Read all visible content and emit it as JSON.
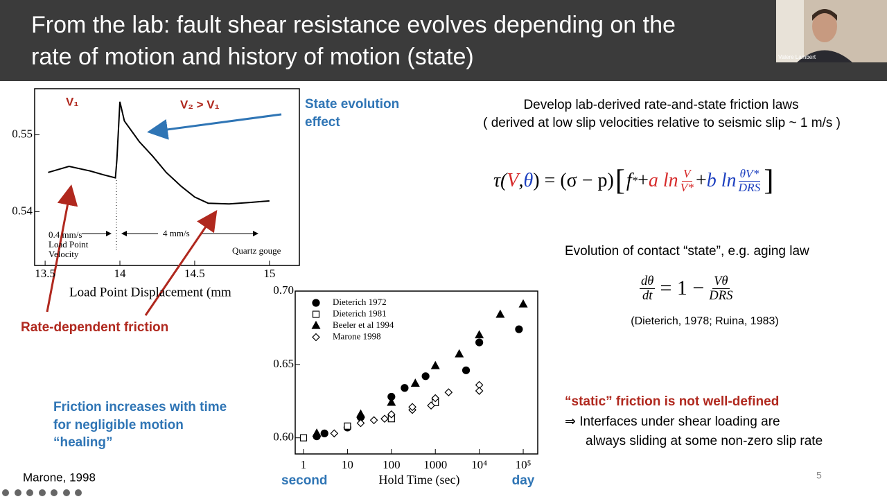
{
  "header": {
    "title_lines": [
      "From the lab: fault shear resistance evolves depending on the",
      "rate of motion and history of motion (state)"
    ]
  },
  "webcam": {
    "name": "Valere Lambert"
  },
  "left_plot": {
    "type": "line",
    "x": [
      13.52,
      13.66,
      13.8,
      13.89,
      13.97,
      13.98,
      14.0,
      14.03,
      14.13,
      14.22,
      14.31,
      14.41,
      14.5,
      14.59,
      14.73,
      14.87,
      15.0
    ],
    "values": [
      0.5451,
      0.5459,
      0.5453,
      0.5448,
      0.5444,
      0.5468,
      0.5543,
      0.5518,
      0.5491,
      0.5472,
      0.5451,
      0.5433,
      0.5419,
      0.5411,
      0.541,
      0.5412,
      0.5414
    ],
    "color": "#000000",
    "xlim": [
      13.43,
      15.2
    ],
    "ylim": [
      0.533,
      0.556
    ],
    "xticks": [
      13.5,
      14,
      14.5,
      15
    ],
    "yticks": [
      0.55,
      0.54
    ],
    "xlabel": "Load Point Displacement (mm",
    "annotations": {
      "v1": "V₁",
      "v2": "V₂ > V₁",
      "slow": [
        "0.4 mm/s",
        "Load Point",
        "Velocity"
      ],
      "fast": "4 mm/s",
      "material": "Quartz gouge"
    }
  },
  "right_plot": {
    "type": "scatter",
    "xlog": true,
    "xlim": [
      0.647,
      214000
    ],
    "ylim": [
      0.589,
      0.7
    ],
    "xticks": [
      1,
      10,
      100,
      1000,
      {
        "value": 10000,
        "label": "10⁴"
      },
      {
        "value": 100000,
        "label": "10⁵"
      }
    ],
    "yticks": [
      {
        "value": 0.6,
        "label": "0.60"
      },
      0.65,
      {
        "value": 0.7,
        "label": "0.70"
      }
    ],
    "xlabel": "Hold Time (sec)",
    "left_note": "second",
    "right_note": "day",
    "series": [
      {
        "name": "Dieterich 1972",
        "marker": "circle",
        "filled": true,
        "x": [
          2,
          3,
          10,
          20,
          100,
          200,
          600,
          5000,
          10000,
          80000
        ],
        "values": [
          0.601,
          0.603,
          0.607,
          0.614,
          0.628,
          0.634,
          0.642,
          0.646,
          0.665,
          0.674
        ]
      },
      {
        "name": "Dieterich 1981",
        "marker": "square",
        "filled": false,
        "x": [
          1,
          10,
          100,
          1000
        ],
        "values": [
          0.6,
          0.608,
          0.613,
          0.624
        ]
      },
      {
        "name": "Beeler et al 1994",
        "marker": "triangle",
        "filled": true,
        "x": [
          2,
          20,
          100,
          350,
          1000,
          3500,
          10000,
          30000,
          100000
        ],
        "values": [
          0.603,
          0.616,
          0.624,
          0.637,
          0.649,
          0.657,
          0.67,
          0.684,
          0.691
        ]
      },
      {
        "name": "Marone 1998",
        "marker": "diamond",
        "filled": false,
        "x": [
          5,
          20,
          40,
          70,
          100,
          300,
          300,
          800,
          1000,
          2000,
          10000,
          10000
        ],
        "values": [
          0.603,
          0.61,
          0.612,
          0.613,
          0.616,
          0.619,
          0.621,
          0.622,
          0.627,
          0.631,
          0.636,
          0.632
        ]
      }
    ]
  },
  "notes": {
    "state_evolution": [
      "State evolution",
      "effect"
    ],
    "rate_dependent": "Rate-dependent friction",
    "healing": [
      "Friction increases with time",
      "for negligible motion",
      "“healing”"
    ],
    "source": "Marone, 1998",
    "develop": [
      "Develop lab-derived rate-and-state friction laws",
      "( derived at low slip velocities relative to seismic slip ~ 1 m/s )"
    ],
    "aging": "Evolution of contact “state”, e.g. aging law",
    "citation": "(Dieterich, 1978; Ruina, 1983)",
    "static_heading": "“static” friction is not well-defined",
    "implication": [
      "⇒ Interfaces under shear loading are",
      "always sliding at some non-zero slip rate"
    ],
    "page": "5"
  },
  "equation_1": {
    "open": "τ(",
    "v": "V",
    "comma": ",",
    "theta": "θ",
    "rest": ") = (σ − p)",
    "f": "f",
    "star": "*",
    "plus1": " + ",
    "a": "a ln",
    "a_num": "V",
    "a_den": "V*",
    "plus2": " + ",
    "b": "b ln",
    "b_num": "θV*",
    "b_den": "DRS"
  },
  "equation_2": {
    "num": "dθ",
    "den": "dt",
    "mid": "= 1 −",
    "num2": "Vθ",
    "den2": "DRS"
  }
}
